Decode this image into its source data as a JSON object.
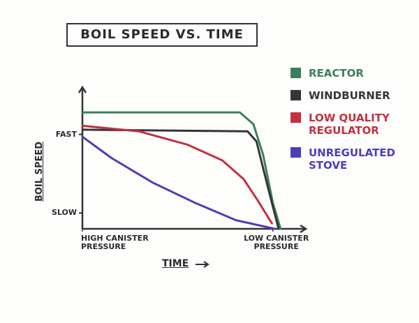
{
  "chart_data": {
    "type": "line",
    "title": "BOIL SPEED vs. TIME",
    "xlabel": "TIME",
    "ylabel": "BOIL SPEED",
    "xlim": [
      0,
      115
    ],
    "ylim": [
      -20,
      160
    ],
    "xticks": [
      {
        "value": 0,
        "label": "HIGH CANISTER PRESSURE"
      },
      {
        "value": 98,
        "label": "LOW CANISTER PRESSURE"
      }
    ],
    "yticks": [
      {
        "value": 0,
        "label": "SLOW"
      },
      {
        "value": 100,
        "label": "FAST"
      }
    ],
    "grid": false,
    "legend": "upper right",
    "series": [
      {
        "name": "REACTOR",
        "color": "#3f7d5c",
        "x": [
          0,
          81,
          88,
          93,
          98,
          102
        ],
        "values": [
          128,
          128,
          113,
          74,
          13,
          -20
        ]
      },
      {
        "name": "WINDBURNER",
        "color": "#35353a",
        "x": [
          0,
          85,
          89.6,
          93,
          97.5,
          101
        ],
        "values": [
          106,
          104,
          91,
          57,
          13,
          -20
        ]
      },
      {
        "name": "LOW QUALITY REGULATOR",
        "color": "#c3303f",
        "x": [
          0,
          29,
          54,
          72,
          83,
          90,
          97.5
        ],
        "values": [
          111,
          104,
          87,
          67,
          43,
          17,
          -13
        ]
      },
      {
        "name": "UNREGULATED STOVE",
        "color": "#4a3fb8",
        "x": [
          0,
          15,
          36,
          58,
          79,
          99
        ],
        "values": [
          97,
          70,
          39,
          13,
          -9,
          -20
        ]
      }
    ]
  }
}
